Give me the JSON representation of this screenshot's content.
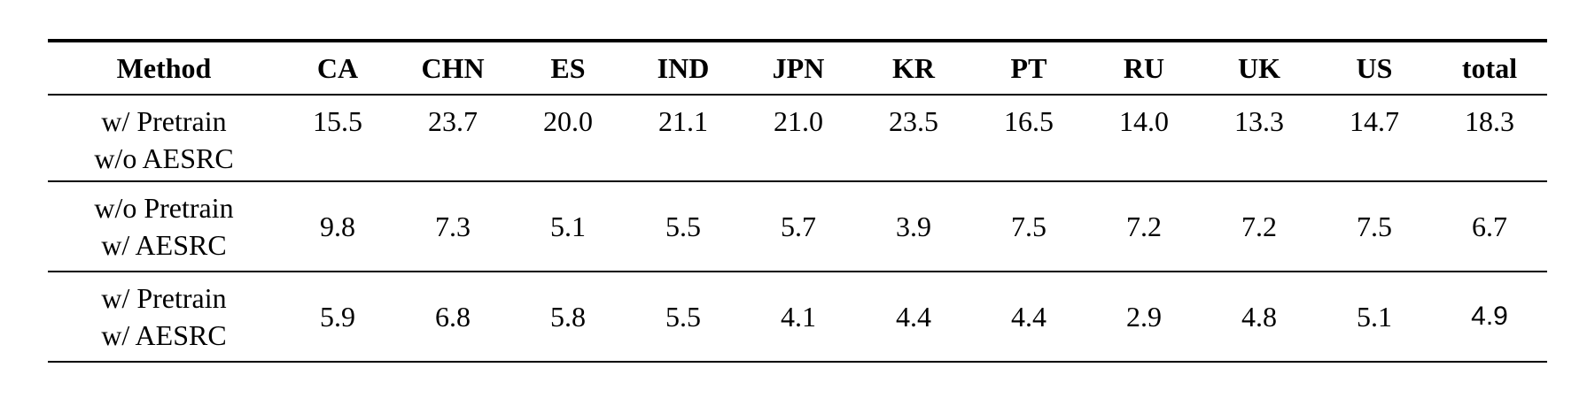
{
  "table": {
    "headers": [
      "Method",
      "CA",
      "CHN",
      "ES",
      "IND",
      "JPN",
      "KR",
      "PT",
      "RU",
      "UK",
      "US",
      "total"
    ],
    "rows": [
      {
        "method_line1": "w/ Pretrain",
        "method_line2": "w/o AESRC",
        "values": [
          "15.5",
          "23.7",
          "20.0",
          "21.1",
          "21.0",
          "23.5",
          "16.5",
          "14.0",
          "13.3",
          "14.7",
          "18.3"
        ]
      },
      {
        "method_line1": "w/o Pretrain",
        "method_line2": "w/ AESRC",
        "values": [
          "9.8",
          "7.3",
          "5.1",
          "5.5",
          "5.7",
          "3.9",
          "7.5",
          "7.2",
          "7.2",
          "7.5",
          "6.7"
        ]
      },
      {
        "method_line1": "w/ Pretrain",
        "method_line2": "w/ AESRC",
        "values": [
          "5.9",
          "6.8",
          "5.8",
          "5.5",
          "4.1",
          "4.4",
          "4.4",
          "2.9",
          "4.8",
          "5.1",
          "4.9"
        ]
      }
    ]
  }
}
